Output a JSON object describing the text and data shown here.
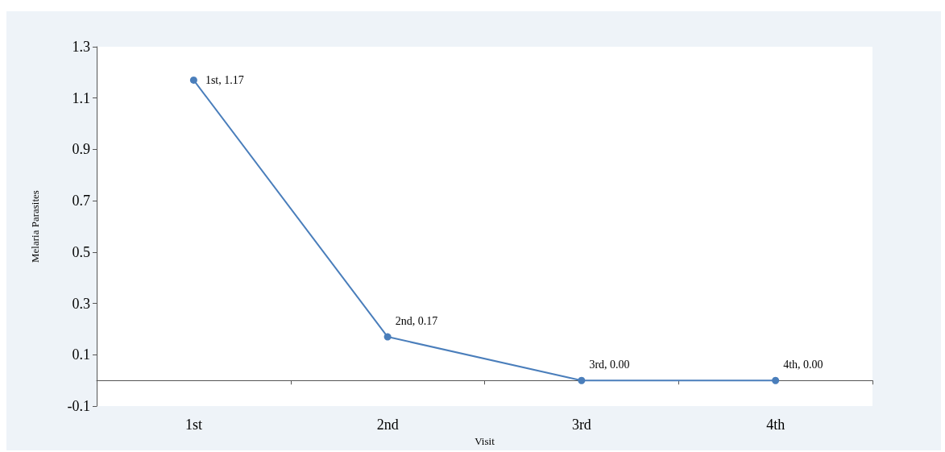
{
  "chart_data": {
    "type": "line",
    "xlabel": "Visit",
    "ylabel": "Melaria Parasites",
    "categories": [
      "1st",
      "2nd",
      "3rd",
      "4th"
    ],
    "series": [
      {
        "color": "#4a7ebb",
        "values": [
          1.17,
          0.17,
          0.0,
          0.0
        ],
        "value_labels": [
          "1st, 1.17",
          "2nd, 0.17",
          "3rd, 0.00",
          "4th, 0.00"
        ]
      }
    ],
    "ylim": [
      -0.1,
      1.3
    ],
    "yticks": [
      -0.1,
      0.1,
      0.3,
      0.5,
      0.7,
      0.9,
      1.1,
      1.3
    ],
    "grid": false,
    "marker": "circle",
    "line_style": "solid"
  }
}
